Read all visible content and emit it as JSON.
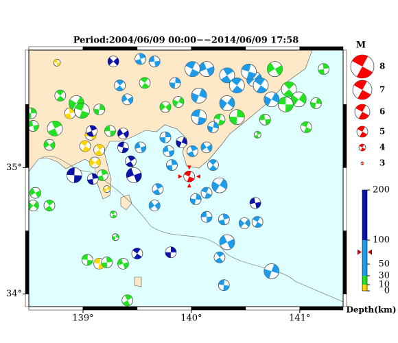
{
  "map": {
    "title": "Period:2004/06/09 00:00−−2014/06/09 17:58",
    "xlim": [
      138.5,
      141.4
    ],
    "ylim": [
      33.9,
      35.93
    ],
    "xticks": [
      {
        "value": 139,
        "label": "139°"
      },
      {
        "value": 140,
        "label": "140°"
      },
      {
        "value": 141,
        "label": "141°"
      }
    ],
    "yticks": [
      {
        "value": 34,
        "label": "34°"
      },
      {
        "value": 35,
        "label": "35°"
      }
    ],
    "events": {
      "lon": [
        138.76,
        138.88,
        139.07,
        139.15,
        139.11,
        139.02,
        139.22,
        139.15,
        138.52,
        138.54,
        138.74,
        138.69,
        138.79,
        138.94,
        138.99,
        139.15,
        139.25,
        139.18,
        138.56,
        138.69,
        138.54,
        139.28,
        139.3,
        139.04,
        139.22,
        139.37,
        139.41,
        139.76,
        139.57,
        139.88,
        140.26,
        140.42,
        140.68,
        140.61,
        140.77,
        140.9,
        140.99,
        141.06,
        141.15,
        140.87,
        141.22,
        140.14,
        140.33,
        140.58,
        140.64,
        140.07,
        140.07,
        139.76,
        139.79,
        140.01,
        140.14,
        140.2,
        140.26,
        140.14,
        140.04,
        140.14,
        140.3,
        140.33,
        140.26,
        140.49,
        140.61,
        140.74,
        140.3,
        139.82,
        139.53,
        139.69,
        139.66,
        140.42,
        140.74,
        140.53,
        139.85,
        139.66,
        139.53,
        139.41,
        139.34,
        140.33,
        140.01,
        140.2,
        138.92,
        139.09,
        139.47,
        139.44,
        139.28,
        139.5,
        139.91,
        139.37,
        139.81,
        140.59,
        139.08,
        139.37
      ],
      "lat": [
        35.83,
        35.43,
        35.26,
        35.14,
        35.04,
        35.17,
        34.83,
        34.24,
        35.43,
        35.33,
        35.31,
        35.18,
        35.57,
        35.51,
        35.45,
        35.46,
        35.29,
        34.94,
        34.8,
        34.7,
        34.7,
        34.63,
        34.45,
        34.27,
        34.25,
        34.24,
        33.95,
        35.48,
        35.67,
        35.52,
        35.38,
        35.4,
        35.38,
        35.26,
        35.78,
        35.62,
        35.54,
        35.32,
        35.51,
        35.5,
        35.78,
        35.78,
        35.73,
        35.7,
        35.65,
        35.57,
        35.4,
        35.24,
        35.13,
        35.13,
        35.16,
        35.02,
        34.86,
        34.8,
        34.75,
        34.61,
        34.59,
        34.41,
        34.29,
        34.56,
        34.57,
        34.18,
        34.07,
        35.02,
        35.16,
        34.83,
        34.7,
        35.65,
        35.54,
        35.76,
        35.67,
        35.84,
        35.86,
        35.54,
        35.65,
        35.51,
        35.78,
        35.32,
        34.94,
        34.91,
        34.94,
        35.05,
        35.84,
        34.32,
        35.2,
        35.16,
        34.33,
        34.72,
        35.29,
        35.27
      ],
      "depth": [
        5,
        5,
        5,
        5,
        5,
        5,
        5,
        5,
        20,
        20,
        20,
        20,
        20,
        20,
        20,
        20,
        20,
        20,
        20,
        20,
        20,
        20,
        20,
        20,
        20,
        20,
        20,
        20,
        20,
        20,
        20,
        20,
        20,
        20,
        20,
        20,
        20,
        20,
        20,
        20,
        20,
        60,
        60,
        60,
        60,
        60,
        60,
        60,
        60,
        60,
        60,
        60,
        60,
        60,
        60,
        60,
        60,
        60,
        60,
        60,
        60,
        60,
        60,
        60,
        60,
        60,
        60,
        60,
        60,
        60,
        60,
        60,
        60,
        60,
        60,
        60,
        60,
        60,
        150,
        150,
        150,
        150,
        150,
        150,
        150,
        150,
        150,
        150,
        150,
        150
      ],
      "mag": [
        4,
        5,
        5,
        5,
        5,
        5,
        4,
        5,
        5,
        5,
        6,
        5,
        5,
        6,
        6,
        5,
        5,
        5,
        5,
        5,
        5,
        4,
        4,
        5,
        5,
        5,
        5,
        5,
        5,
        5,
        5,
        6,
        5,
        4,
        6,
        6,
        6,
        5,
        5,
        6,
        5,
        6,
        6,
        6,
        6,
        6,
        6,
        5,
        5,
        5,
        5,
        5,
        6,
        5,
        5,
        5,
        5,
        6,
        5,
        5,
        5,
        6,
        5,
        5,
        5,
        5,
        5,
        6,
        6,
        6,
        5,
        5,
        5,
        5,
        5,
        6,
        6,
        5,
        6,
        5,
        6,
        5,
        5,
        5,
        5,
        5,
        5,
        5,
        5,
        5
      ]
    },
    "highlight": {
      "lon": 139.98,
      "lat": 34.93,
      "depth": 75,
      "mag": 5,
      "color": "#ff0000"
    },
    "magnitude_legend": {
      "title": "M",
      "values": [
        8,
        7,
        6,
        5,
        4,
        3
      ],
      "color": "#ff0000"
    },
    "depth_scale": {
      "label": "Depth(km)",
      "ticks": [
        0,
        10,
        30,
        50,
        100,
        200
      ],
      "colors": [
        {
          "from": 0,
          "to": 10,
          "color": "#ffd700"
        },
        {
          "from": 10,
          "to": 30,
          "color": "#22e022"
        },
        {
          "from": 30,
          "to": 100,
          "color": "#1e9be8"
        },
        {
          "from": 100,
          "to": 200,
          "color": "#0a14a8"
        }
      ],
      "marker_color": "#cc0000"
    }
  }
}
